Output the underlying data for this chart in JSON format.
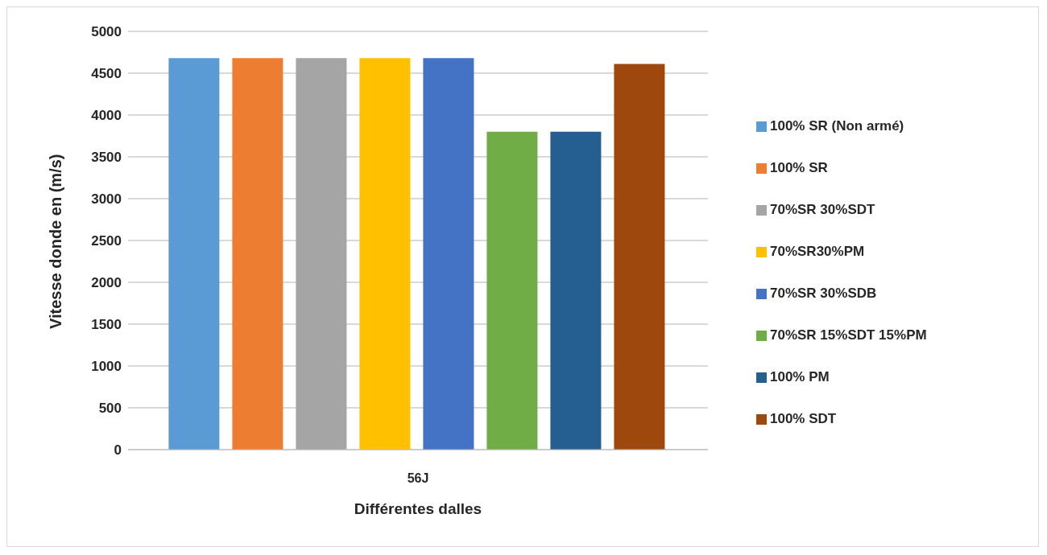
{
  "chart_data": {
    "type": "bar",
    "xlabel": "Différentes dalles",
    "ylabel": "Vitesse donde en (m/s)",
    "categories": [
      "56J"
    ],
    "series": [
      {
        "name": "100% SR (Non armé)",
        "color": "#5b9bd5",
        "values": [
          4680
        ]
      },
      {
        "name": "100% SR",
        "color": "#ed7d31",
        "values": [
          4680
        ]
      },
      {
        "name": "70%SR 30%SDT",
        "color": "#a5a5a5",
        "values": [
          4680
        ]
      },
      {
        "name": "70%SR30%PM",
        "color": "#ffc000",
        "values": [
          4680
        ]
      },
      {
        "name": "70%SR 30%SDB",
        "color": "#4472c4",
        "values": [
          4680
        ]
      },
      {
        "name": "70%SR 15%SDT 15%PM",
        "color": "#70ad47",
        "values": [
          3800
        ]
      },
      {
        "name": "100% PM",
        "color": "#255e91",
        "values": [
          3800
        ]
      },
      {
        "name": "100% SDT",
        "color": "#9e480e",
        "values": [
          4610
        ]
      }
    ],
    "ylim": [
      0,
      5000
    ],
    "yticks": [
      0,
      500,
      1000,
      1500,
      2000,
      2500,
      3000,
      3500,
      4000,
      4500,
      5000
    ],
    "grid": "y",
    "legend": "right"
  }
}
